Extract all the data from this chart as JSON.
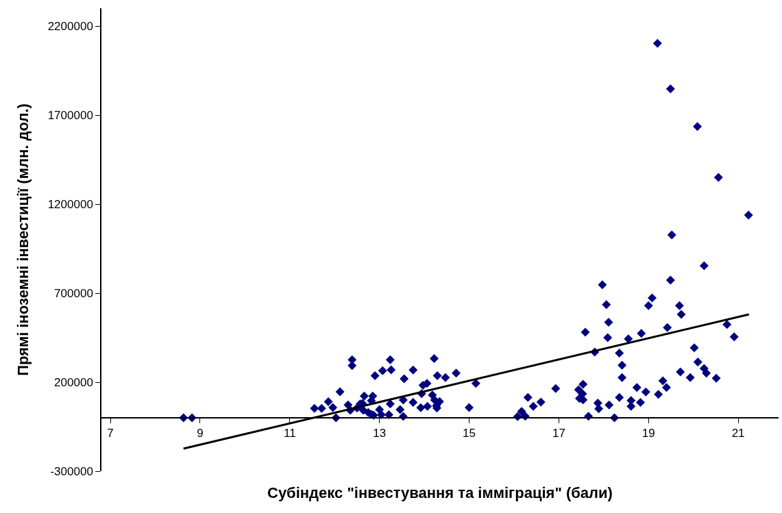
{
  "chart_data": {
    "type": "scatter",
    "xlabel": "Субіндекс \"інвестування та імміграція\" (бали)",
    "ylabel": "Прямі іноземні інвестиції (млн. дол.)",
    "xlim": [
      6.8,
      21.9
    ],
    "ylim": [
      -300000,
      2300000
    ],
    "xticks": [
      7,
      9,
      11,
      13,
      15,
      17,
      19,
      21
    ],
    "yticks": [
      -300000,
      200000,
      700000,
      1200000,
      1700000,
      2200000
    ],
    "marker": "diamond",
    "series": [
      {
        "color": "#000080",
        "x": [
          8.63,
          8.82,
          11.55,
          11.71,
          11.86,
          11.96,
          12.03,
          12.12,
          12.3,
          12.35,
          12.39,
          12.39,
          12.5,
          12.57,
          12.62,
          12.66,
          12.64,
          12.75,
          12.82,
          12.85,
          12.87,
          12.82,
          12.9,
          13.0,
          13.04,
          13.07,
          13.21,
          13.24,
          13.26,
          13.24,
          13.46,
          13.53,
          13.53,
          13.55,
          13.75,
          13.75,
          13.92,
          13.94,
          13.97,
          14.06,
          14.07,
          14.18,
          14.22,
          14.23,
          14.27,
          14.29,
          14.34,
          14.28,
          14.47,
          14.71,
          15.0,
          15.15,
          16.08,
          16.17,
          16.25,
          16.31,
          16.43,
          16.6,
          16.93,
          17.44,
          17.54,
          17.46,
          17.53,
          17.54,
          17.59,
          17.66,
          17.8,
          17.87,
          17.89,
          17.97,
          18.06,
          18.11,
          18.09,
          18.12,
          18.24,
          18.35,
          18.41,
          18.41,
          18.35,
          18.55,
          18.61,
          18.61,
          18.74,
          18.82,
          18.84,
          18.94,
          19.0,
          19.08,
          19.22,
          19.32,
          19.4,
          19.42,
          19.49,
          19.69,
          19.71,
          19.73,
          19.93,
          20.02,
          20.1,
          20.24,
          20.29,
          20.24,
          20.51,
          20.75,
          20.91,
          19.2,
          19.49,
          20.09,
          20.56,
          21.23,
          19.52
        ],
        "values": [
          0,
          0,
          53000,
          53000,
          90000,
          58000,
          0,
          146000,
          72000,
          42000,
          326000,
          293000,
          55000,
          78000,
          81000,
          122000,
          42000,
          30000,
          96000,
          122000,
          14000,
          19000,
          237000,
          46000,
          17000,
          264000,
          17000,
          326000,
          269000,
          78000,
          46000,
          100000,
          8000,
          219000,
          268000,
          87000,
          57000,
          136000,
          183000,
          193000,
          64000,
          128000,
          333000,
          100000,
          68000,
          237000,
          91000,
          55000,
          226000,
          251000,
          58000,
          193000,
          7000,
          36000,
          9000,
          114000,
          64000,
          88000,
          164000,
          158000,
          188000,
          109000,
          135000,
          101000,
          481000,
          9000,
          369000,
          83000,
          51000,
          747000,
          636000,
          537000,
          450000,
          72000,
          0,
          363000,
          295000,
          226000,
          114000,
          443000,
          97000,
          64000,
          170000,
          87000,
          474000,
          145000,
          630000,
          673000,
          132000,
          208000,
          170000,
          507000,
          773000,
          630000,
          258000,
          581000,
          226000,
          393000,
          313000,
          277000,
          251000,
          854000,
          222000,
          524000,
          455000,
          2103000,
          1847000,
          1636000,
          1350000,
          1138000,
          1027000
        ]
      },
      {
        "type": "line",
        "color": "#000000",
        "marker": "none",
        "line_style": "solid",
        "x": [
          8.63,
          21.24
        ],
        "values": [
          -173000,
          581000
        ]
      }
    ]
  }
}
